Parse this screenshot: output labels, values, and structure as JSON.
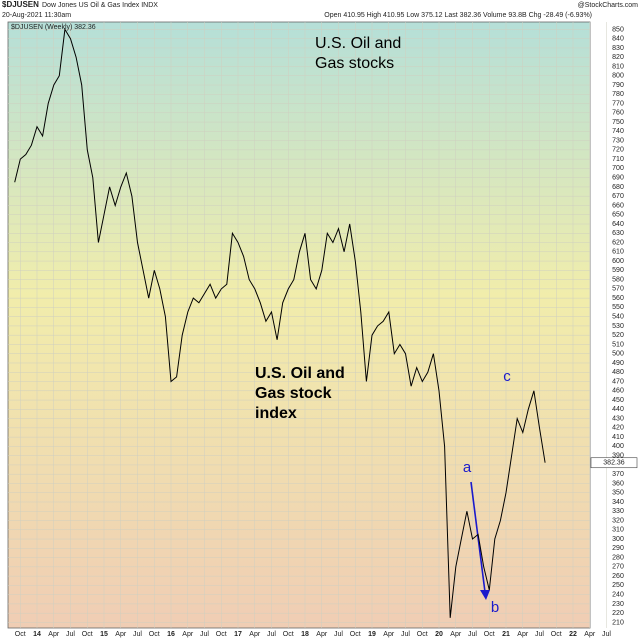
{
  "chart_data": {
    "type": "line",
    "symbol": "$DJUSEN",
    "title": "Dow Jones US Oil & Gas Index INDX",
    "date": "20-Aug-2021 11:30am",
    "quote": "Open 410.95  High 410.95  Low 375.12  Last 382.36  Volume 93.8B  Chg -28.49 (-6.93%)",
    "source": "@StockCharts.com",
    "annotations": [
      [
        "U.S. Oil and",
        "Gas stocks"
      ],
      [
        "U.S. Oil and",
        "Gas stock",
        "index"
      ],
      "a",
      "b",
      "c"
    ],
    "x": [
      "2013-09",
      "2013-10",
      "2013-11",
      "2013-12",
      "2014-01",
      "2014-02",
      "2014-03",
      "2014-04",
      "2014-05",
      "2014-06",
      "2014-07",
      "2014-08",
      "2014-09",
      "2014-10",
      "2014-11",
      "2014-12",
      "2015-01",
      "2015-02",
      "2015-03",
      "2015-04",
      "2015-05",
      "2015-06",
      "2015-07",
      "2015-08",
      "2015-09",
      "2015-10",
      "2015-11",
      "2015-12",
      "2016-01",
      "2016-02",
      "2016-03",
      "2016-04",
      "2016-05",
      "2016-06",
      "2016-07",
      "2016-08",
      "2016-09",
      "2016-10",
      "2016-11",
      "2016-12",
      "2017-01",
      "2017-02",
      "2017-03",
      "2017-04",
      "2017-05",
      "2017-06",
      "2017-07",
      "2017-08",
      "2017-09",
      "2017-10",
      "2017-11",
      "2017-12",
      "2018-01",
      "2018-02",
      "2018-03",
      "2018-04",
      "2018-05",
      "2018-06",
      "2018-07",
      "2018-08",
      "2018-09",
      "2018-10",
      "2018-11",
      "2018-12",
      "2019-01",
      "2019-02",
      "2019-03",
      "2019-04",
      "2019-05",
      "2019-06",
      "2019-07",
      "2019-08",
      "2019-09",
      "2019-10",
      "2019-11",
      "2019-12",
      "2020-01",
      "2020-02",
      "2020-03",
      "2020-04",
      "2020-05",
      "2020-06",
      "2020-07",
      "2020-08",
      "2020-09",
      "2020-10",
      "2020-11",
      "2020-12",
      "2021-01",
      "2021-02",
      "2021-03",
      "2021-04",
      "2021-05",
      "2021-06",
      "2021-07",
      "2021-08"
    ],
    "series": [
      {
        "name": "$DJUSEN (Weekly) 382.36",
        "color": "#000000",
        "values": [
          685,
          710,
          715,
          725,
          745,
          735,
          770,
          790,
          800,
          850,
          840,
          820,
          790,
          720,
          690,
          620,
          650,
          680,
          660,
          680,
          695,
          670,
          620,
          590,
          560,
          590,
          570,
          540,
          470,
          475,
          520,
          545,
          560,
          555,
          565,
          575,
          560,
          570,
          575,
          630,
          620,
          605,
          580,
          570,
          555,
          535,
          545,
          515,
          555,
          570,
          580,
          610,
          630,
          580,
          570,
          590,
          630,
          620,
          635,
          610,
          640,
          600,
          545,
          470,
          520,
          530,
          535,
          545,
          500,
          510,
          500,
          465,
          485,
          470,
          480,
          500,
          460,
          400,
          215,
          270,
          300,
          330,
          300,
          305,
          270,
          245,
          300,
          320,
          350,
          390,
          430,
          415,
          440,
          460,
          420,
          382.36
        ]
      }
    ],
    "xticks": [
      {
        "value": "2013-10",
        "label": "Oct"
      },
      {
        "value": "2014-01",
        "label": "14"
      },
      {
        "value": "2014-04",
        "label": "Apr"
      },
      {
        "value": "2014-07",
        "label": "Jul"
      },
      {
        "value": "2014-10",
        "label": "Oct"
      },
      {
        "value": "2015-01",
        "label": "15"
      },
      {
        "value": "2015-04",
        "label": "Apr"
      },
      {
        "value": "2015-07",
        "label": "Jul"
      },
      {
        "value": "2015-10",
        "label": "Oct"
      },
      {
        "value": "2016-01",
        "label": "16"
      },
      {
        "value": "2016-04",
        "label": "Apr"
      },
      {
        "value": "2016-07",
        "label": "Jul"
      },
      {
        "value": "2016-10",
        "label": "Oct"
      },
      {
        "value": "2017-01",
        "label": "17"
      },
      {
        "value": "2017-04",
        "label": "Apr"
      },
      {
        "value": "2017-07",
        "label": "Jul"
      },
      {
        "value": "2017-10",
        "label": "Oct"
      },
      {
        "value": "2018-01",
        "label": "18"
      },
      {
        "value": "2018-04",
        "label": "Apr"
      },
      {
        "value": "2018-07",
        "label": "Jul"
      },
      {
        "value": "2018-10",
        "label": "Oct"
      },
      {
        "value": "2019-01",
        "label": "19"
      },
      {
        "value": "2019-04",
        "label": "Apr"
      },
      {
        "value": "2019-07",
        "label": "Jul"
      },
      {
        "value": "2019-10",
        "label": "Oct"
      },
      {
        "value": "2020-01",
        "label": "20"
      },
      {
        "value": "2020-04",
        "label": "Apr"
      },
      {
        "value": "2020-07",
        "label": "Jul"
      },
      {
        "value": "2020-10",
        "label": "Oct"
      },
      {
        "value": "2021-01",
        "label": "21"
      },
      {
        "value": "2021-04",
        "label": "Apr"
      },
      {
        "value": "2021-07",
        "label": "Jul"
      },
      {
        "value": "2021-10",
        "label": "Oct"
      },
      {
        "value": "2022-01",
        "label": "22"
      },
      {
        "value": "2022-04",
        "label": "Apr"
      },
      {
        "value": "2022-07",
        "label": "Jul"
      }
    ],
    "ylim": [
      204,
      858
    ],
    "yticks": [
      210,
      220,
      230,
      240,
      250,
      260,
      270,
      280,
      290,
      300,
      310,
      320,
      330,
      340,
      350,
      360,
      370,
      380,
      390,
      400,
      410,
      420,
      430,
      440,
      450,
      460,
      470,
      480,
      490,
      500,
      510,
      520,
      530,
      540,
      550,
      560,
      570,
      580,
      590,
      600,
      610,
      620,
      630,
      640,
      650,
      660,
      670,
      680,
      690,
      700,
      710,
      720,
      730,
      740,
      750,
      760,
      770,
      780,
      790,
      800,
      810,
      820,
      830,
      840,
      850
    ],
    "grid": true
  }
}
